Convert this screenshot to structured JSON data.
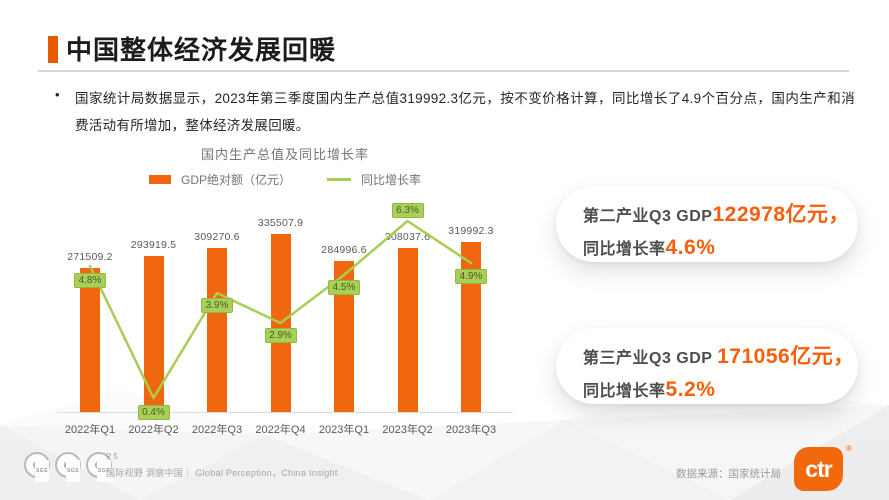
{
  "header": {
    "title": "中国整体经济发展回暖"
  },
  "bullet": {
    "marker": "•",
    "text": "国家统计局数据显示，2023年第三季度国内生产总值319992.3亿元，按不变价格计算，同比增长了4.9个百分点，国内生产和消费活动有所增加，整体经济发展回暖。"
  },
  "chart_data": {
    "type": "bar+line",
    "title": "国内生产总值及同比增长率",
    "categories": [
      "2022年Q1",
      "2022年Q2",
      "2022年Q3",
      "2022年Q4",
      "2023年Q1",
      "2023年Q2",
      "2023年Q3"
    ],
    "series": [
      {
        "name": "GDP绝对额（亿元）",
        "type": "bar",
        "color": "#f1670d",
        "values": [
          271509.2,
          293919.5,
          309270.6,
          335507.9,
          284996.6,
          308037.6,
          319992.3
        ]
      },
      {
        "name": "同比增长率",
        "type": "line",
        "color": "#a8cc54",
        "values": [
          4.8,
          0.4,
          3.9,
          2.9,
          4.5,
          6.3,
          4.9
        ],
        "labels": [
          "4.8%",
          "0.4%",
          "3.9%",
          "2.9%",
          "4.5%",
          "6.3%",
          "4.9%"
        ]
      }
    ],
    "ylim_bar": [
      0,
      360000
    ],
    "ylim_line_pct": [
      0,
      8
    ],
    "grid": false,
    "legend_position": "top"
  },
  "cards": [
    {
      "prefix": "第二产业Q3 GDP",
      "value": "122978亿元，",
      "line2_prefix": "同比增长率",
      "line2_value": "4.6%"
    },
    {
      "prefix": "第三产业Q3 GDP ",
      "value": "171056亿元，",
      "line2_prefix": "同比增长率",
      "line2_value": "5.2%"
    }
  ],
  "footer": {
    "page": "P 5",
    "tagline": "国际视野 洞察中国｜ Global Perception，China Insight",
    "source": "数据来源：国家统计局",
    "logo_text": "ctr",
    "registered": "®",
    "sgs_label": "SGS",
    "sgs_glyph": "℮"
  },
  "colors": {
    "accent": "#f2690d",
    "bar": "#f1670d",
    "line": "#a8cc54",
    "label_bg": "#a9cf5b",
    "highlight": "#f85f0a"
  }
}
